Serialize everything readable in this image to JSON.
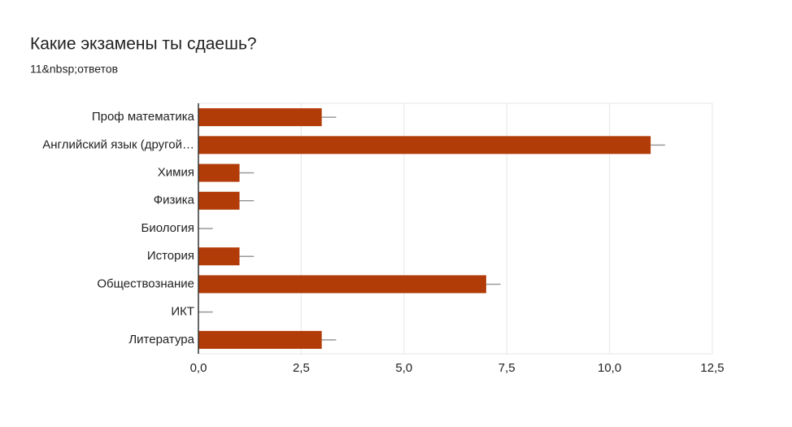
{
  "chart_data": {
    "type": "bar",
    "orientation": "horizontal",
    "title": "Какие экзамены ты сдаешь?",
    "subtitle": "11&nbsp;ответов",
    "categories": [
      "Проф математика",
      "Английский язык (другой…",
      "Химия",
      "Физика",
      "Биология",
      "История",
      "Обществознание",
      "ИКТ",
      "Литература"
    ],
    "values": [
      3,
      11,
      1,
      1,
      0,
      1,
      7,
      0,
      3
    ],
    "errors": [
      0.35,
      0.35,
      0.35,
      0.35,
      0.35,
      0.35,
      0.35,
      0.35,
      0.35
    ],
    "color": "#b23c08",
    "xlim": [
      0,
      12.5
    ],
    "xticks": [
      {
        "value": 0,
        "label": "0,0"
      },
      {
        "value": 2.5,
        "label": "2,5"
      },
      {
        "value": 5,
        "label": "5,0"
      },
      {
        "value": 7.5,
        "label": "7,5"
      },
      {
        "value": 10,
        "label": "10,0"
      },
      {
        "value": 12.5,
        "label": "12,5"
      }
    ],
    "grid": true
  }
}
